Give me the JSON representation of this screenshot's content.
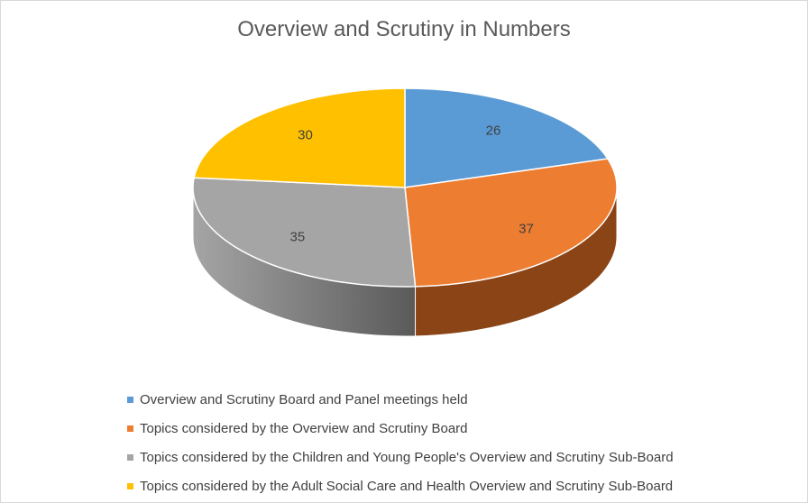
{
  "chart_data": {
    "type": "pie",
    "title": "Overview and Scrutiny in Numbers",
    "categories": [
      "Overview and Scrutiny Board and Panel meetings held",
      "Topics considered by the Overview and Scrutiny Board",
      "Topics considered by the Children and Young People's Overview and Scrutiny Sub-Board",
      "Topics considered by the Adult Social Care and Health Overview and Scrutiny Sub-Board"
    ],
    "values": [
      26,
      37,
      35,
      30
    ],
    "colors": [
      "#5B9BD5",
      "#ED7D31",
      "#A5A5A5",
      "#FFC000"
    ],
    "side_colors": [
      "#3A6FA0",
      "#8A4416",
      "#5a5a5a",
      "#A07800"
    ],
    "legend_position": "bottom",
    "style": "3d"
  }
}
